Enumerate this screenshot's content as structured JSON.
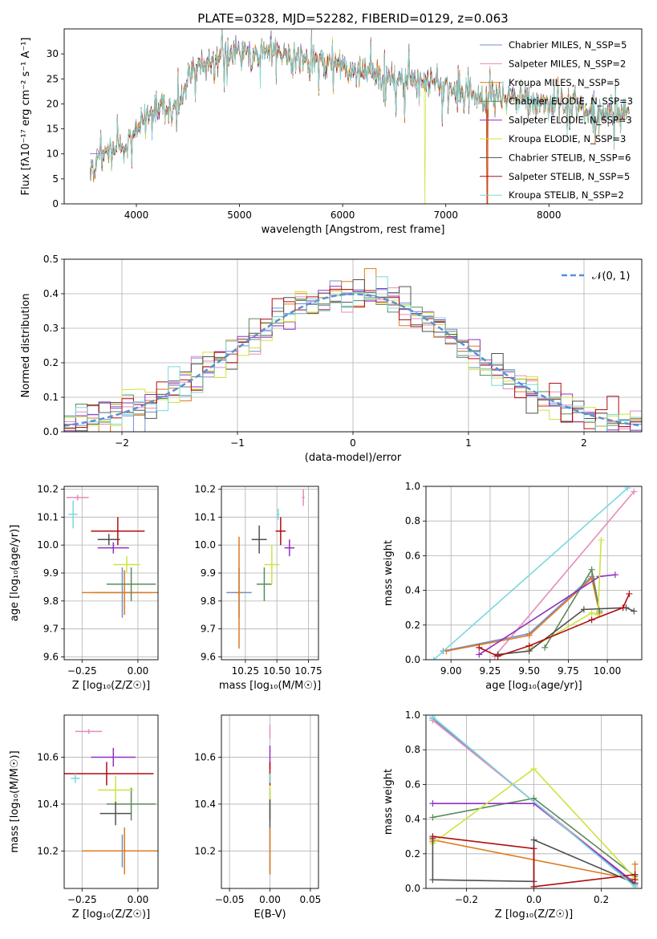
{
  "figure_title": "PLATE=0328, MJD=52282, FIBERID=0129, z=0.063",
  "series_colors": [
    "#6f8fcf",
    "#e58cbb",
    "#e07b1f",
    "#5a8a5a",
    "#9030c0",
    "#cfe23e",
    "#505050",
    "#b00d12",
    "#7ad8dd"
  ],
  "chart_data": [
    {
      "id": "spectrum",
      "type": "line",
      "xlabel": "wavelength [Angstrom, rest frame]",
      "ylabel": "Flux [fλ10⁻¹⁷ erg cm⁻² s⁻¹ A⁻¹]",
      "xlim": [
        3300,
        8900
      ],
      "ylim": [
        0,
        35
      ],
      "xticks": [
        4000,
        5000,
        6000,
        7000,
        8000
      ],
      "yticks": [
        0,
        5,
        10,
        15,
        20,
        25,
        30
      ],
      "grid": false,
      "legend_position": "top-right",
      "continuum_wavelength": [
        3550,
        3650,
        3750,
        3850,
        3950,
        4050,
        4150,
        4250,
        4350,
        4450,
        4550,
        4650,
        4750,
        4850,
        4950,
        5050,
        5150,
        5250,
        5350,
        5450,
        5550,
        5650,
        5750,
        5850,
        5950,
        6050,
        6150,
        6250,
        6350,
        6450,
        6550,
        6650,
        6750,
        6850,
        6950,
        7050,
        7150,
        7250,
        7350,
        7450,
        7550,
        7650,
        7750,
        7850,
        7950,
        8050,
        8150,
        8250,
        8350,
        8450,
        8550,
        8700
      ],
      "continuum_flux": [
        7,
        9,
        11,
        11,
        13,
        17,
        19,
        20,
        18,
        22,
        27,
        28,
        29,
        30,
        30,
        30,
        30,
        31,
        30,
        30,
        29,
        29,
        28,
        28,
        28,
        27,
        26,
        26,
        25,
        25,
        25,
        25,
        25,
        24,
        24,
        23,
        22,
        21,
        21,
        21,
        21,
        21,
        21,
        20,
        20,
        20,
        20,
        20,
        19,
        18,
        18,
        18
      ],
      "series": [
        {
          "name": "Chabrier MILES, N_SSP=5"
        },
        {
          "name": "Salpeter MILES, N_SSP=2"
        },
        {
          "name": "Kroupa MILES, N_SSP=5"
        },
        {
          "name": "Chabrier ELODIE, N_SSP=3"
        },
        {
          "name": "Salpeter ELODIE, N_SSP=3"
        },
        {
          "name": "Kroupa ELODIE, N_SSP=3"
        },
        {
          "name": "Chabrier STELIB, N_SSP=6"
        },
        {
          "name": "Salpeter STELIB, N_SSP=5"
        },
        {
          "name": "Kroupa STELIB, N_SSP=2"
        }
      ]
    },
    {
      "id": "residuals",
      "type": "histogram",
      "xlabel": "(data-model)/error",
      "ylabel": "Normed distribution",
      "xlim": [
        -2.5,
        2.5
      ],
      "ylim": [
        0,
        0.5
      ],
      "xticks": [
        -2,
        -1,
        0,
        1,
        2
      ],
      "yticks": [
        0.0,
        0.1,
        0.2,
        0.3,
        0.4,
        0.5
      ],
      "grid": true,
      "bins": 50,
      "reference_curve": "Gaussian N(0,1)",
      "legend": "𝒩(0, 1)",
      "legend_position": "top-right"
    },
    {
      "id": "age_vs_Z",
      "type": "errorbar",
      "xlabel": "Z [log₁₀(Z/Z☉)]",
      "ylabel": "age  [log₁₀(age/yr)]",
      "xlim": [
        -0.33,
        0.09
      ],
      "ylim": [
        9.59,
        10.21
      ],
      "xticks": [
        -0.25,
        0.0
      ],
      "xticklabels": [
        "−0.25",
        "0.00"
      ],
      "yticks": [
        9.6,
        9.7,
        9.8,
        9.9,
        10.0,
        10.1,
        10.2
      ],
      "grid": true,
      "points": [
        {
          "series": 0,
          "x": -0.07,
          "y": 9.83,
          "xerr": 0.13,
          "yerr": 0.09
        },
        {
          "series": 1,
          "x": -0.27,
          "y": 10.17,
          "xerr": 0.05,
          "yerr": 0.01
        },
        {
          "series": 2,
          "x": -0.06,
          "y": 9.83,
          "xerr": 0.19,
          "yerr": 0.08
        },
        {
          "series": 3,
          "x": -0.03,
          "y": 9.86,
          "xerr": 0.11,
          "yerr": 0.06
        },
        {
          "series": 4,
          "x": -0.11,
          "y": 9.99,
          "xerr": 0.07,
          "yerr": 0.02
        },
        {
          "series": 5,
          "x": -0.05,
          "y": 9.93,
          "xerr": 0.06,
          "yerr": 0.03
        },
        {
          "series": 6,
          "x": -0.13,
          "y": 10.02,
          "xerr": 0.05,
          "yerr": 0.02
        },
        {
          "series": 7,
          "x": -0.09,
          "y": 10.05,
          "xerr": 0.12,
          "yerr": 0.05
        },
        {
          "series": 8,
          "x": -0.29,
          "y": 10.11,
          "xerr": 0.02,
          "yerr": 0.05
        }
      ]
    },
    {
      "id": "age_vs_mass",
      "type": "errorbar",
      "xlabel": "mass [log₁₀(M/M☉)]",
      "ylabel": "",
      "xlim": [
        10.06,
        10.83
      ],
      "ylim": [
        9.59,
        10.21
      ],
      "xticks": [
        10.25,
        10.5,
        10.75
      ],
      "xticklabels": [
        "10.25",
        "10.50",
        "10.75"
      ],
      "yticks": [
        9.6,
        9.7,
        9.8,
        9.9,
        10.0,
        10.1,
        10.2
      ],
      "grid": true,
      "points": [
        {
          "series": 0,
          "x": 10.2,
          "y": 9.83,
          "xerr": 0.1,
          "yerr": 0.09
        },
        {
          "series": 1,
          "x": 10.71,
          "y": 10.17,
          "xerr": 0.01,
          "yerr": 0.03
        },
        {
          "series": 2,
          "x": 10.2,
          "y": 9.83,
          "xerr": 0.02,
          "yerr": 0.2
        },
        {
          "series": 3,
          "x": 10.4,
          "y": 9.86,
          "xerr": 0.06,
          "yerr": 0.06
        },
        {
          "series": 4,
          "x": 10.6,
          "y": 9.99,
          "xerr": 0.04,
          "yerr": 0.03
        },
        {
          "series": 5,
          "x": 10.46,
          "y": 9.93,
          "xerr": 0.06,
          "yerr": 0.07
        },
        {
          "series": 6,
          "x": 10.36,
          "y": 10.02,
          "xerr": 0.06,
          "yerr": 0.05
        },
        {
          "series": 7,
          "x": 10.53,
          "y": 10.05,
          "xerr": 0.04,
          "yerr": 0.05
        },
        {
          "series": 8,
          "x": 10.51,
          "y": 10.11,
          "xerr": 0.01,
          "yerr": 0.02
        }
      ]
    },
    {
      "id": "weight_vs_age",
      "type": "line",
      "xlabel": "age  [log₁₀(age/yr)]",
      "ylabel": "mass weight",
      "xlim": [
        8.84,
        10.22
      ],
      "ylim": [
        0,
        1.0
      ],
      "xticks": [
        9.0,
        9.25,
        9.5,
        9.75,
        10.0
      ],
      "xticklabels": [
        "9.00",
        "9.25",
        "9.50",
        "9.75",
        "10.00"
      ],
      "yticks": [
        0.0,
        0.2,
        0.4,
        0.6,
        0.8,
        1.0
      ],
      "grid": true,
      "series": [
        {
          "color_index": 0,
          "x": [
            8.95,
            9.5,
            9.9,
            9.95
          ],
          "y": [
            0.05,
            0.15,
            0.48,
            0.27
          ]
        },
        {
          "color_index": 1,
          "x": [
            9.28,
            10.17
          ],
          "y": [
            0.02,
            0.97
          ]
        },
        {
          "color_index": 2,
          "x": [
            8.97,
            9.5,
            9.9,
            9.95
          ],
          "y": [
            0.05,
            0.14,
            0.47,
            0.27
          ]
        },
        {
          "color_index": 3,
          "x": [
            9.6,
            9.9,
            9.95
          ],
          "y": [
            0.07,
            0.52,
            0.28
          ]
        },
        {
          "color_index": 4,
          "x": [
            9.18,
            9.95,
            10.05
          ],
          "y": [
            0.03,
            0.48,
            0.49
          ]
        },
        {
          "color_index": 5,
          "x": [
            9.5,
            9.9,
            9.94,
            9.96
          ],
          "y": [
            0.06,
            0.27,
            0.26,
            0.69
          ]
        },
        {
          "color_index": 6,
          "x": [
            9.3,
            9.5,
            9.85,
            10.12,
            10.17
          ],
          "y": [
            0.03,
            0.05,
            0.29,
            0.3,
            0.28
          ]
        },
        {
          "color_index": 7,
          "x": [
            9.18,
            9.3,
            9.5,
            9.9,
            10.1,
            10.14
          ],
          "y": [
            0.07,
            0.02,
            0.08,
            0.23,
            0.3,
            0.38
          ]
        },
        {
          "color_index": 8,
          "x": [
            8.89,
            10.13
          ],
          "y": [
            0.0,
            0.99
          ]
        }
      ]
    },
    {
      "id": "mass_vs_Z",
      "type": "errorbar",
      "xlabel": "Z [log₁₀(Z/Z☉)]",
      "ylabel": "mass [log₁₀(M/M☉)]",
      "xlim": [
        -0.33,
        0.09
      ],
      "ylim": [
        10.04,
        10.78
      ],
      "xticks": [
        -0.25,
        0.0
      ],
      "xticklabels": [
        "−0.25",
        "0.00"
      ],
      "yticks": [
        10.2,
        10.4,
        10.6
      ],
      "grid": true,
      "points": [
        {
          "series": 0,
          "x": -0.07,
          "y": 10.2,
          "xerr": 0.13,
          "yerr": 0.07
        },
        {
          "series": 1,
          "x": -0.22,
          "y": 10.71,
          "xerr": 0.06,
          "yerr": 0.01
        },
        {
          "series": 2,
          "x": -0.06,
          "y": 10.2,
          "xerr": 0.19,
          "yerr": 0.1
        },
        {
          "series": 3,
          "x": -0.03,
          "y": 10.4,
          "xerr": 0.11,
          "yerr": 0.07
        },
        {
          "series": 4,
          "x": -0.11,
          "y": 10.6,
          "xerr": 0.1,
          "yerr": 0.04
        },
        {
          "series": 5,
          "x": -0.1,
          "y": 10.46,
          "xerr": 0.08,
          "yerr": 0.06
        },
        {
          "series": 6,
          "x": -0.1,
          "y": 10.36,
          "xerr": 0.07,
          "yerr": 0.05
        },
        {
          "series": 7,
          "x": -0.14,
          "y": 10.53,
          "xerr": 0.21,
          "yerr": 0.05
        },
        {
          "series": 8,
          "x": -0.28,
          "y": 10.51,
          "xerr": 0.02,
          "yerr": 0.02
        }
      ]
    },
    {
      "id": "mass_vs_ebv",
      "type": "errorbar",
      "xlabel": "E(B-V)",
      "ylabel": "",
      "xlim": [
        -0.06,
        0.06
      ],
      "ylim": [
        10.04,
        10.78
      ],
      "xticks": [
        -0.05,
        0.0,
        0.05
      ],
      "xticklabels": [
        "−0.05",
        "0.00",
        "0.05"
      ],
      "yticks": [
        10.2,
        10.4,
        10.6
      ],
      "grid": true,
      "points": [
        {
          "series": 0,
          "x": 0.0,
          "y": 10.2,
          "xerr": 0.0,
          "yerr": 0.1
        },
        {
          "series": 1,
          "x": 0.0,
          "y": 10.71,
          "xerr": 0.0,
          "yerr": 0.03
        },
        {
          "series": 2,
          "x": 0.0,
          "y": 10.2,
          "xerr": 0.0,
          "yerr": 0.1
        },
        {
          "series": 3,
          "x": 0.0,
          "y": 10.4,
          "xerr": 0.0,
          "yerr": 0.07
        },
        {
          "series": 4,
          "x": 0.0,
          "y": 10.6,
          "xerr": 0.0,
          "yerr": 0.05
        },
        {
          "series": 5,
          "x": 0.0,
          "y": 10.46,
          "xerr": 0.0,
          "yerr": 0.07
        },
        {
          "series": 6,
          "x": 0.0,
          "y": 10.36,
          "xerr": 0.0,
          "yerr": 0.06
        },
        {
          "series": 7,
          "x": 0.0,
          "y": 10.53,
          "xerr": 0.0,
          "yerr": 0.05
        },
        {
          "series": 8,
          "x": 0.0,
          "y": 10.51,
          "xerr": 0.0,
          "yerr": 0.02
        }
      ]
    },
    {
      "id": "weight_vs_Z",
      "type": "line",
      "xlabel": "Z [log₁₀(Z/Z☉)]",
      "ylabel": "mass weight",
      "xlim": [
        -0.32,
        0.32
      ],
      "ylim": [
        0,
        1.0
      ],
      "xticks": [
        -0.2,
        0.0,
        0.2
      ],
      "xticklabels": [
        "−0.2",
        "0.0",
        "0.2"
      ],
      "yticks": [
        0.0,
        0.2,
        0.4,
        0.6,
        0.8,
        1.0
      ],
      "grid": true,
      "series": [
        {
          "color_index": 0,
          "x": [
            -0.3,
            0.3
          ],
          "y": [
            0.98,
            0.02
          ]
        },
        {
          "color_index": 1,
          "x": [
            -0.3,
            0.3
          ],
          "y": [
            0.97,
            0.03
          ]
        },
        {
          "color_index": 2,
          "x": [
            -0.3,
            -0.3,
            0.3,
            0.3
          ],
          "y": [
            0.27,
            0.28,
            0.05,
            0.14
          ]
        },
        {
          "color_index": 3,
          "x": [
            -0.3,
            0.0,
            0.3
          ],
          "y": [
            0.41,
            0.52,
            0.07
          ]
        },
        {
          "color_index": 4,
          "x": [
            -0.3,
            0.0,
            0.3
          ],
          "y": [
            0.49,
            0.49,
            0.03
          ]
        },
        {
          "color_index": 5,
          "x": [
            -0.3,
            0.0,
            0.3
          ],
          "y": [
            0.26,
            0.69,
            0.06
          ]
        },
        {
          "color_index": 6,
          "x": [
            -0.3,
            -0.3,
            0.0,
            0.0,
            0.3
          ],
          "y": [
            0.29,
            0.05,
            0.04,
            0.28,
            0.03
          ]
        },
        {
          "color_index": 7,
          "x": [
            -0.3,
            0.0,
            0.0,
            0.3,
            0.3
          ],
          "y": [
            0.3,
            0.23,
            0.01,
            0.08,
            0.05
          ]
        },
        {
          "color_index": 8,
          "x": [
            -0.3,
            0.3
          ],
          "y": [
            0.99,
            0.01
          ]
        }
      ]
    }
  ]
}
